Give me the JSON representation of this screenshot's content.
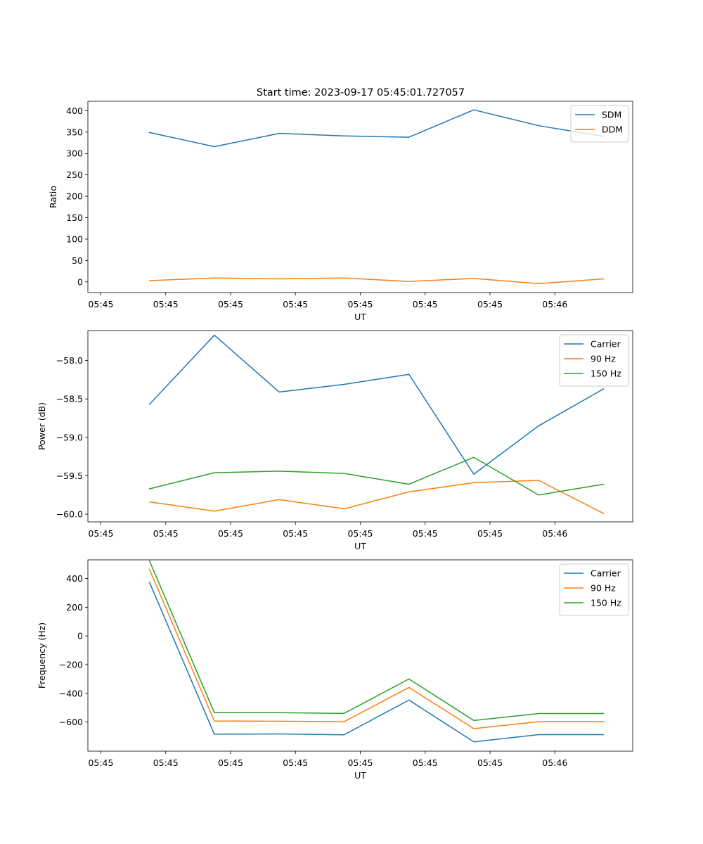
{
  "figure": {
    "title": "Start time: 2023-09-17 05:45:01.727057"
  },
  "colors": {
    "blue": "#1f77b4",
    "orange": "#ff7f0e",
    "green": "#2ca02c"
  },
  "chart_data": [
    {
      "type": "line",
      "id": "ratio",
      "title": "Start time: 2023-09-17 05:45:01.727057",
      "xlabel": "UT",
      "ylabel": "Ratio",
      "x": [
        1,
        2,
        3,
        4,
        5,
        6,
        7,
        8
      ],
      "xlim": [
        0.8,
        9.2
      ],
      "xticks": [
        1,
        2,
        3,
        4,
        5,
        6,
        7,
        8
      ],
      "xtick_labels": [
        "05:45",
        "05:45",
        "05:45",
        "05:45",
        "05:45",
        "05:45",
        "05:45",
        "05:46"
      ],
      "ylim": [
        -25,
        422
      ],
      "yticks": [
        0,
        50,
        100,
        150,
        200,
        250,
        300,
        350,
        400
      ],
      "ytick_labels": [
        "0",
        "50",
        "100",
        "150",
        "200",
        "250",
        "300",
        "350",
        "400"
      ],
      "legend_position": "top-right",
      "series": [
        {
          "name": "SDM",
          "color": "#1f77b4",
          "x": [
            1.75,
            2.75,
            3.75,
            4.75,
            5.75,
            6.75,
            7.75,
            8.75
          ],
          "values": [
            349,
            316,
            347,
            341,
            338,
            402,
            365,
            340
          ]
        },
        {
          "name": "DDM",
          "color": "#ff7f0e",
          "x": [
            1.75,
            2.75,
            3.75,
            4.75,
            5.75,
            6.75,
            7.75,
            8.75
          ],
          "values": [
            3,
            9,
            7,
            9,
            1,
            8,
            -4,
            7
          ]
        }
      ]
    },
    {
      "type": "line",
      "id": "power",
      "xlabel": "UT",
      "ylabel": "Power (dB)",
      "xlim": [
        0.8,
        9.2
      ],
      "xticks": [
        1,
        2,
        3,
        4,
        5,
        6,
        7,
        8
      ],
      "xtick_labels": [
        "05:45",
        "05:45",
        "05:45",
        "05:45",
        "05:45",
        "05:45",
        "05:45",
        "05:46"
      ],
      "ylim": [
        -60.1,
        -57.61
      ],
      "yticks": [
        -58.0,
        -58.5,
        -59.0,
        -59.5,
        -60.0
      ],
      "ytick_labels": [
        "−58.0",
        "−58.5",
        "−59.0",
        "−59.5",
        "−60.0"
      ],
      "legend_position": "top-right",
      "series": [
        {
          "name": "Carrier",
          "color": "#1f77b4",
          "x": [
            1.75,
            2.75,
            3.75,
            4.75,
            5.75,
            6.75,
            7.75,
            8.75
          ],
          "values": [
            -58.57,
            -57.67,
            -58.41,
            -58.31,
            -58.18,
            -59.48,
            -58.85,
            -58.37
          ]
        },
        {
          "name": "90 Hz",
          "color": "#ff7f0e",
          "x": [
            1.75,
            2.75,
            3.75,
            4.75,
            5.75,
            6.75,
            7.75,
            8.75
          ],
          "values": [
            -59.84,
            -59.96,
            -59.81,
            -59.93,
            -59.71,
            -59.59,
            -59.56,
            -59.99
          ]
        },
        {
          "name": "150 Hz",
          "color": "#2ca02c",
          "x": [
            1.75,
            2.75,
            3.75,
            4.75,
            5.75,
            6.75,
            7.75,
            8.75
          ],
          "values": [
            -59.67,
            -59.46,
            -59.44,
            -59.47,
            -59.61,
            -59.26,
            -59.75,
            -59.61
          ]
        }
      ]
    },
    {
      "type": "line",
      "id": "frequency",
      "xlabel": "UT",
      "ylabel": "Frequency (Hz)",
      "xlim": [
        0.8,
        9.2
      ],
      "xticks": [
        1,
        2,
        3,
        4,
        5,
        6,
        7,
        8
      ],
      "xtick_labels": [
        "05:45",
        "05:45",
        "05:45",
        "05:45",
        "05:45",
        "05:45",
        "05:45",
        "05:46"
      ],
      "ylim": [
        -803,
        530
      ],
      "yticks": [
        400,
        200,
        0,
        -200,
        -400,
        -600
      ],
      "ytick_labels": [
        "400",
        "200",
        "0",
        "−200",
        "−400",
        "−600"
      ],
      "legend_position": "top-right",
      "series": [
        {
          "name": "Carrier",
          "color": "#1f77b4",
          "x": [
            1.75,
            2.75,
            3.75,
            4.75,
            5.75,
            6.75,
            7.75,
            8.75
          ],
          "values": [
            373,
            -685,
            -683,
            -689,
            -447,
            -738,
            -688,
            -688
          ]
        },
        {
          "name": "90 Hz",
          "color": "#ff7f0e",
          "x": [
            1.75,
            2.75,
            3.75,
            4.75,
            5.75,
            6.75,
            7.75,
            8.75
          ],
          "values": [
            463,
            -593,
            -594,
            -598,
            -359,
            -646,
            -597,
            -597
          ]
        },
        {
          "name": "150 Hz",
          "color": "#2ca02c",
          "x": [
            1.75,
            2.75,
            3.75,
            4.75,
            5.75,
            6.75,
            7.75,
            8.75
          ],
          "values": [
            523,
            -535,
            -535,
            -540,
            -300,
            -589,
            -541,
            -541
          ]
        }
      ]
    }
  ]
}
